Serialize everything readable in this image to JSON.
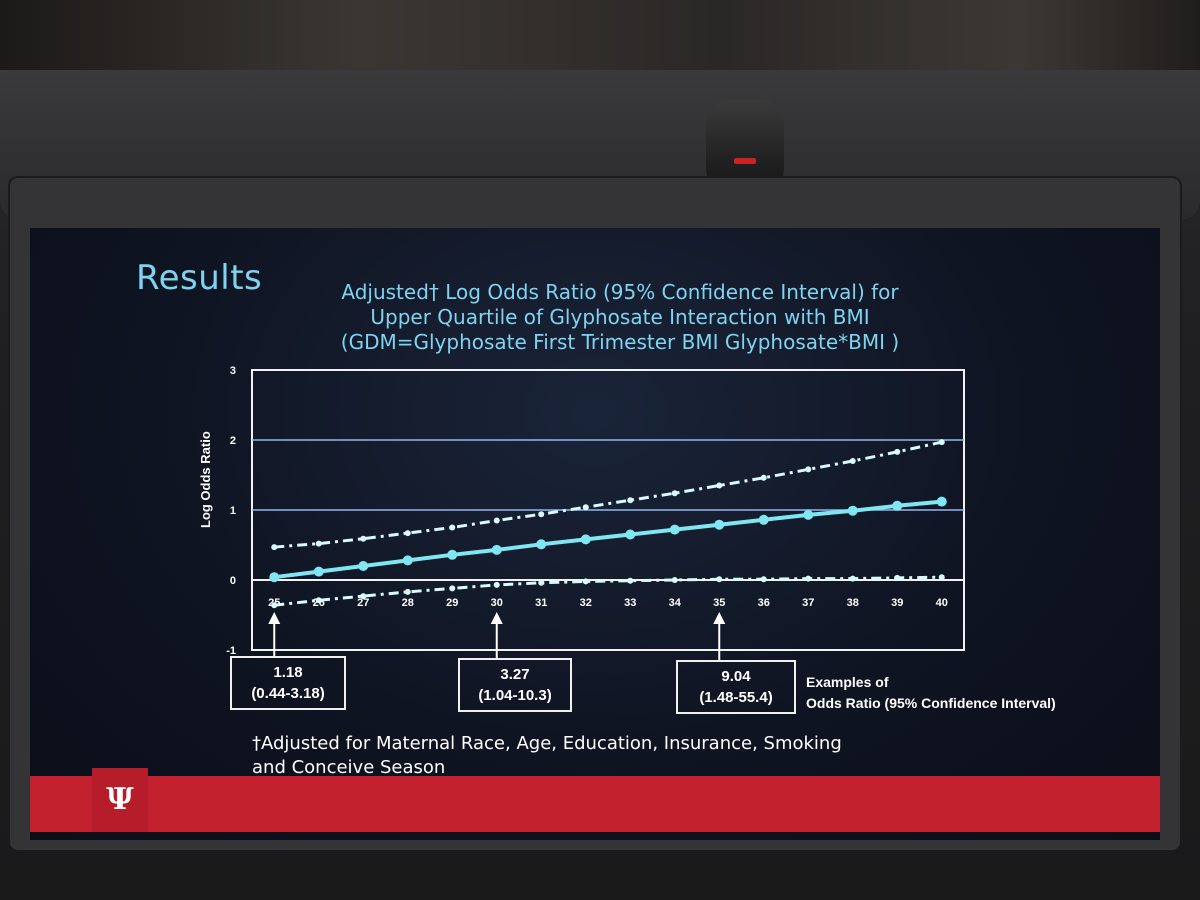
{
  "slide": {
    "heading": "Results",
    "title_lines": [
      "Adjusted† Log Odds Ratio (95% Confidence Interval) for",
      "Upper Quartile of Glyphosate Interaction with BMI",
      "(GDM=Glyphosate First Trimester BMI Glyphosate*BMI )"
    ],
    "footnote_lines": [
      "†Adjusted for Maternal Race, Age, Education, Insurance, Smoking",
      "and Conceive Season"
    ],
    "logo_text": "Ψ",
    "examples_label_lines": [
      "Examples of",
      "Odds Ratio (95% Confidence Interval)"
    ]
  },
  "callouts": [
    {
      "x": 25,
      "value": "1.18",
      "ci": "(0.44-3.18)"
    },
    {
      "x": 30,
      "value": "3.27",
      "ci": "(1.04-10.3)"
    },
    {
      "x": 35,
      "value": "9.04",
      "ci": "(1.48-55.4)"
    }
  ],
  "colors": {
    "estimate": "#7fe6f2",
    "ci": "#d9fbff",
    "axis": "#f2f2f2",
    "grid": "#8fb8f0",
    "accent": "#c4212f"
  },
  "chart_data": {
    "type": "line",
    "x": [
      25,
      26,
      27,
      28,
      29,
      30,
      31,
      32,
      33,
      34,
      35,
      36,
      37,
      38,
      39,
      40
    ],
    "xticks": [
      "25",
      "26",
      "27",
      "28",
      "29",
      "30",
      "31",
      "32",
      "33",
      "34",
      "35",
      "36",
      "37",
      "38",
      "39",
      "40"
    ],
    "yticks": [
      "-1",
      "0",
      "1",
      "2",
      "3"
    ],
    "ylabel": "Log Odds Ratio",
    "ylim": [
      -1,
      3
    ],
    "xlim": [
      24.5,
      40.5
    ],
    "gridlines": [
      1,
      2
    ],
    "series": [
      {
        "style": "solid",
        "values": [
          0.04,
          0.12,
          0.2,
          0.28,
          0.36,
          0.43,
          0.51,
          0.58,
          0.65,
          0.72,
          0.79,
          0.86,
          0.93,
          0.99,
          1.06,
          1.12
        ]
      },
      {
        "style": "dashdot",
        "values": [
          0.47,
          0.52,
          0.59,
          0.67,
          0.75,
          0.85,
          0.94,
          1.04,
          1.14,
          1.24,
          1.35,
          1.46,
          1.58,
          1.7,
          1.83,
          1.97
        ]
      },
      {
        "style": "dashdot",
        "values": [
          -0.36,
          -0.29,
          -0.23,
          -0.17,
          -0.12,
          -0.07,
          -0.04,
          -0.02,
          -0.01,
          0,
          0.01,
          0.01,
          0.02,
          0.02,
          0.03,
          0.04
        ]
      }
    ]
  }
}
